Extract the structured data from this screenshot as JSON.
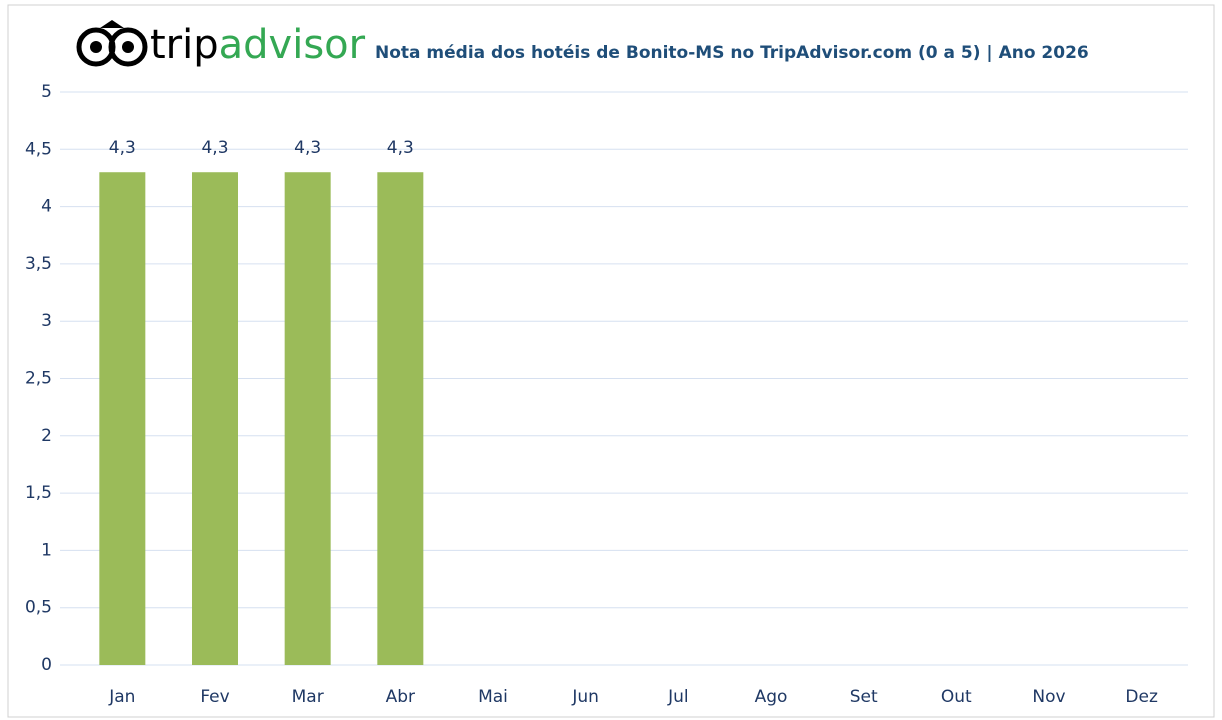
{
  "chart_data": {
    "type": "bar",
    "logo_text": [
      "trip",
      "advisor"
    ],
    "title": "Nota média dos hotéis de Bonito-MS no TripAdvisor.com (0 a 5) | Ano 2026",
    "categories": [
      "Jan",
      "Fev",
      "Mar",
      "Abr",
      "Mai",
      "Jun",
      "Jul",
      "Ago",
      "Set",
      "Out",
      "Nov",
      "Dez"
    ],
    "values": [
      4.3,
      4.3,
      4.3,
      4.3,
      null,
      null,
      null,
      null,
      null,
      null,
      null,
      null
    ],
    "value_labels": [
      "4,3",
      "4,3",
      "4,3",
      "4,3",
      null,
      null,
      null,
      null,
      null,
      null,
      null,
      null
    ],
    "color": "#9bbb59",
    "ylim": [
      0,
      5
    ],
    "yticks": [
      0,
      {
        "value": 0.5,
        "label": "0,5"
      },
      1,
      {
        "value": 1.5,
        "label": "1,5"
      },
      2,
      {
        "value": 2.5,
        "label": "2,5"
      },
      3,
      {
        "value": 3.5,
        "label": "3,5"
      },
      4,
      {
        "value": 4.5,
        "label": "4,5"
      },
      5
    ],
    "grid": true
  }
}
